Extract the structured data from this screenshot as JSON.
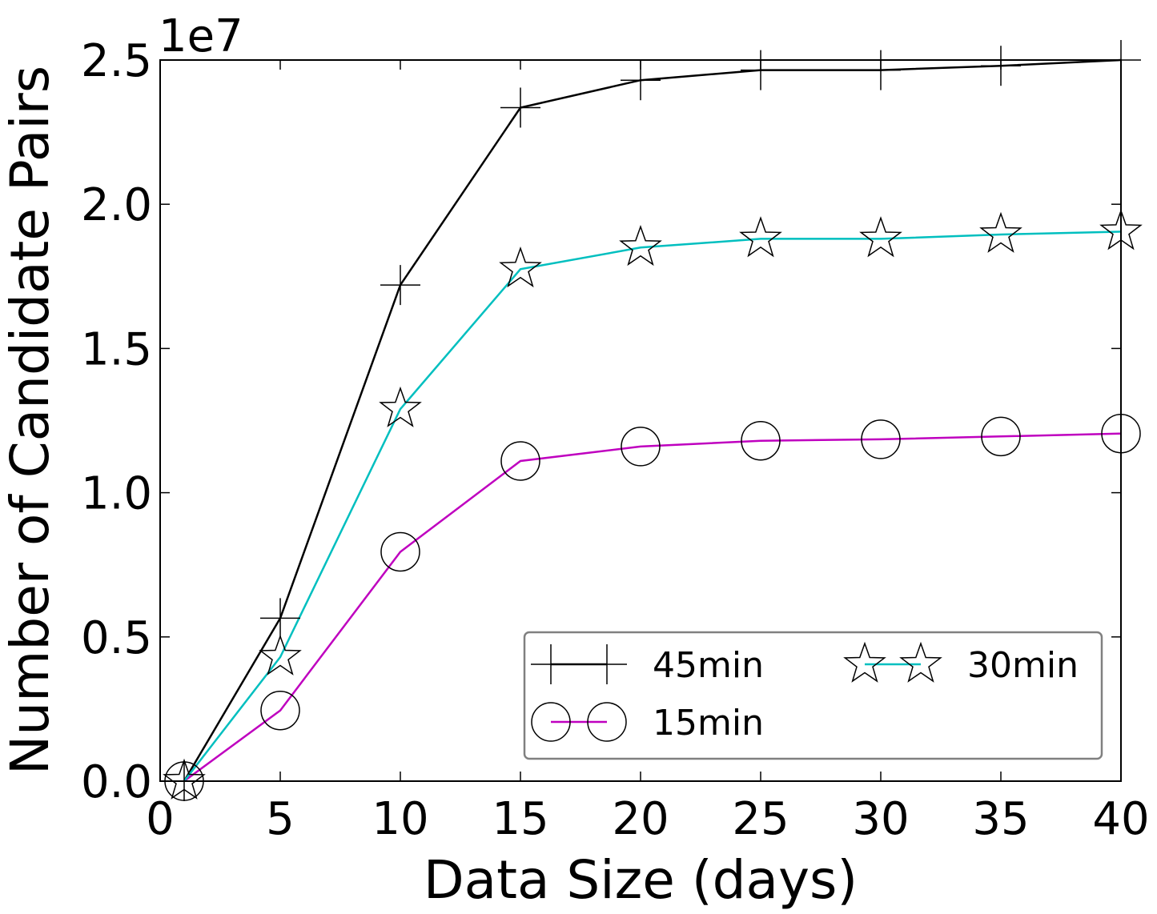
{
  "chart_data": {
    "type": "line",
    "title": "",
    "xlabel": "Data Size (days)",
    "ylabel": "Number of Candidate Pairs",
    "y_offset_label": "1e7",
    "xlim": [
      0,
      40
    ],
    "ylim": [
      0,
      2.5
    ],
    "x_ticks": [
      0,
      5,
      10,
      15,
      20,
      25,
      30,
      35,
      40
    ],
    "y_ticks": [
      0.0,
      0.5,
      1.0,
      1.5,
      2.0,
      2.5
    ],
    "x_tick_labels": [
      "0",
      "5",
      "10",
      "15",
      "20",
      "25",
      "30",
      "35",
      "40"
    ],
    "y_tick_labels": [
      "0.0",
      "0.5",
      "1.0",
      "1.5",
      "2.0",
      "2.5"
    ],
    "grid": false,
    "legend_position": "lower-right",
    "x": [
      1,
      5,
      10,
      15,
      20,
      25,
      30,
      35,
      40
    ],
    "series": [
      {
        "name": "45min",
        "marker": "plus",
        "color": "#000000",
        "values": [
          0.0,
          0.565,
          1.72,
          2.335,
          2.43,
          2.465,
          2.465,
          2.48,
          2.5
        ]
      },
      {
        "name": "15min",
        "marker": "circle",
        "color": "#bf00bf",
        "values": [
          0.0,
          0.245,
          0.795,
          1.11,
          1.16,
          1.18,
          1.185,
          1.195,
          1.205
        ]
      },
      {
        "name": "30min",
        "marker": "star",
        "color": "#00bfbf",
        "values": [
          0.0,
          0.43,
          1.29,
          1.775,
          1.85,
          1.88,
          1.88,
          1.895,
          1.905
        ]
      }
    ]
  }
}
